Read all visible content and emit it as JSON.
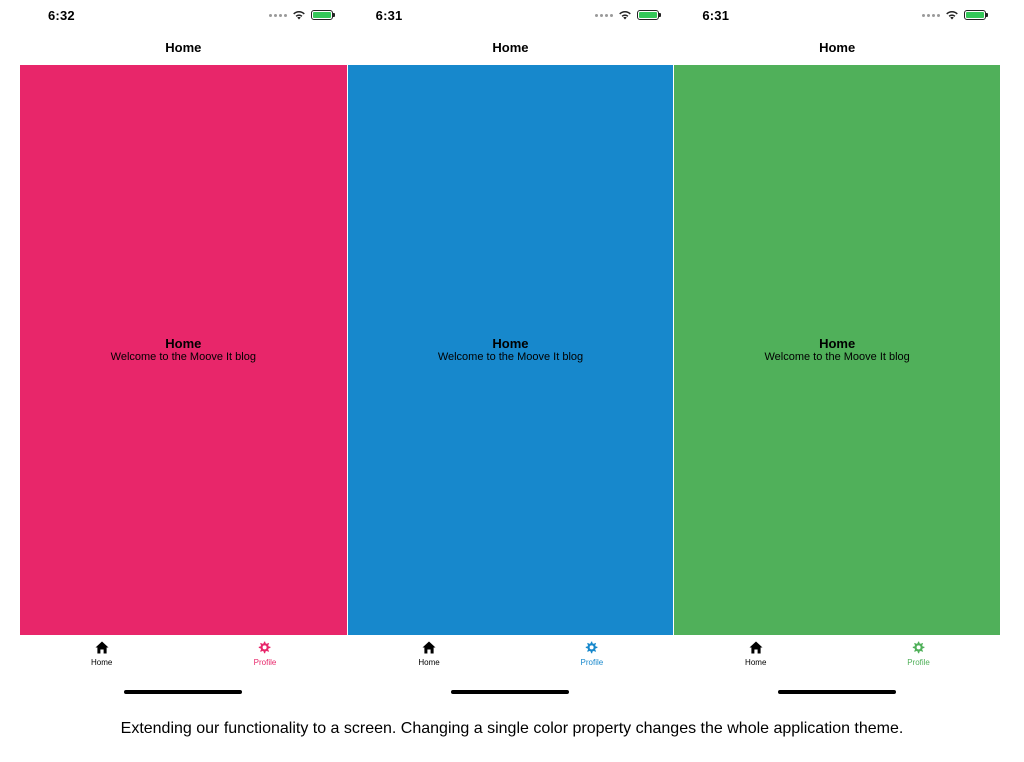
{
  "phones": [
    {
      "time": "6:32",
      "nav_title": "Home",
      "screen_title": "Home",
      "screen_subtitle": "Welcome to the Moove It blog",
      "theme_color": "#e8266a",
      "tabs": [
        {
          "label": "Home",
          "icon": "home-icon",
          "active": false
        },
        {
          "label": "Profile",
          "icon": "gear-icon",
          "active": true
        }
      ]
    },
    {
      "time": "6:31",
      "nav_title": "Home",
      "screen_title": "Home",
      "screen_subtitle": "Welcome to the Moove It blog",
      "theme_color": "#1788cc",
      "tabs": [
        {
          "label": "Home",
          "icon": "home-icon",
          "active": false
        },
        {
          "label": "Profile",
          "icon": "gear-icon",
          "active": true
        }
      ]
    },
    {
      "time": "6:31",
      "nav_title": "Home",
      "screen_title": "Home",
      "screen_subtitle": "Welcome to the Moove It blog",
      "theme_color": "#50b05a",
      "tabs": [
        {
          "label": "Home",
          "icon": "home-icon",
          "active": false
        },
        {
          "label": "Profile",
          "icon": "gear-icon",
          "active": true
        }
      ]
    }
  ],
  "caption": "Extending our functionality to a screen. Changing a single color property changes the whole application theme."
}
